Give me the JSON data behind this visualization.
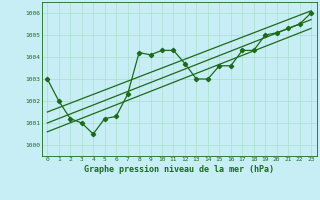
{
  "title": "Graphe pression niveau de la mer (hPa)",
  "xlim": [
    -0.5,
    23.5
  ],
  "ylim": [
    999.5,
    1006.5
  ],
  "yticks": [
    1000,
    1001,
    1002,
    1003,
    1004,
    1005,
    1006
  ],
  "xticks": [
    0,
    1,
    2,
    3,
    4,
    5,
    6,
    7,
    8,
    9,
    10,
    11,
    12,
    13,
    14,
    15,
    16,
    17,
    18,
    19,
    20,
    21,
    22,
    23
  ],
  "bg_color": "#c8eef5",
  "line_color": "#1a6b1a",
  "grid_color": "#aaddcc",
  "line1_x": [
    0,
    1,
    2,
    3,
    4,
    5,
    6,
    7,
    8,
    9,
    10,
    11,
    12,
    13,
    14,
    15,
    16,
    17,
    18,
    19,
    20,
    21,
    22,
    23
  ],
  "line1_y": [
    1003.0,
    1002.0,
    1001.2,
    1001.0,
    1000.5,
    1001.2,
    1001.3,
    1002.3,
    1004.2,
    1004.1,
    1004.3,
    1004.3,
    1003.7,
    1003.0,
    1003.0,
    1003.6,
    1003.6,
    1004.3,
    1004.3,
    1005.0,
    1005.1,
    1005.3,
    1005.5,
    1006.0
  ],
  "line2_x": [
    0,
    23
  ],
  "line2_y": [
    1001.5,
    1006.1
  ],
  "line3_x": [
    0,
    23
  ],
  "line3_y": [
    1001.0,
    1005.7
  ],
  "line4_x": [
    0,
    23
  ],
  "line4_y": [
    1000.6,
    1005.3
  ]
}
